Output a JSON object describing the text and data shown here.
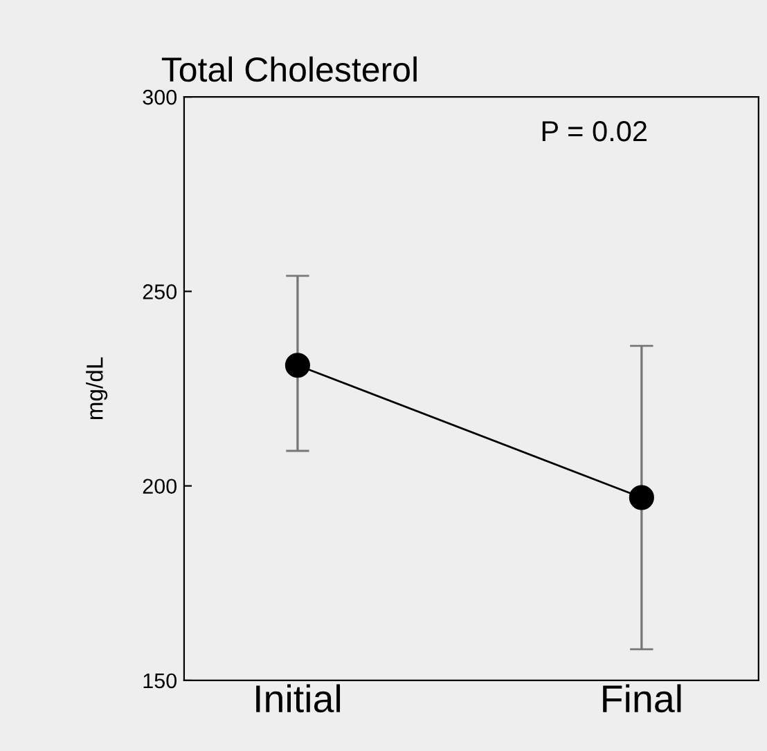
{
  "chart_data": {
    "type": "line",
    "title": "Total Cholesterol",
    "ylabel": "mg/dL",
    "categories": [
      "Initial",
      "Final"
    ],
    "series": [
      {
        "color": "#000000",
        "values": [
          231,
          197
        ],
        "errors": [
          [
            209,
            254
          ],
          [
            158,
            236
          ]
        ]
      }
    ],
    "ylim": [
      150,
      300
    ],
    "yticks": [
      150,
      200,
      250,
      300
    ],
    "marker": "circle",
    "grid": false,
    "legend": false,
    "annotations": [
      "P = 0.02"
    ]
  }
}
